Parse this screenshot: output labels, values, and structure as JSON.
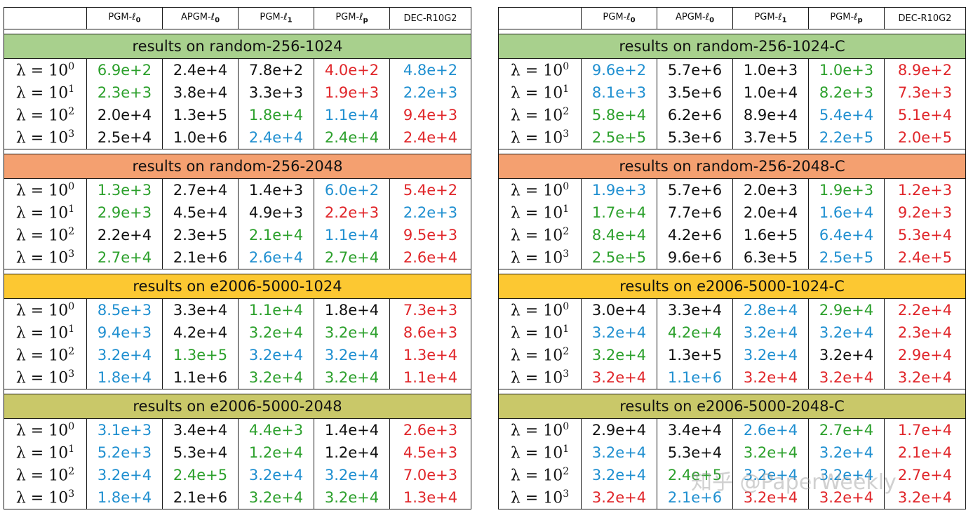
{
  "column_headers": [
    "PGM-ℓ0",
    "APGM-ℓ0",
    "PGM-ℓ1",
    "PGM-ℓp",
    "DEC-R10G2"
  ],
  "column_header_parts": [
    {
      "base": "PGM-ℓ",
      "sub": "0"
    },
    {
      "base": "APGM-ℓ",
      "sub": "0"
    },
    {
      "base": "PGM-ℓ",
      "sub": "1"
    },
    {
      "base": "PGM-ℓ",
      "sub": "p"
    },
    {
      "base": "DEC-R10G2",
      "sub": ""
    }
  ],
  "lambda_labels": [
    {
      "prefix": "λ = 10",
      "exp": "0"
    },
    {
      "prefix": "λ = 10",
      "exp": "1"
    },
    {
      "prefix": "λ = 10",
      "exp": "2"
    },
    {
      "prefix": "λ = 10",
      "exp": "3"
    }
  ],
  "colors": {
    "black": "#111111",
    "green": "#2ca02c",
    "blue": "#1f8fd0",
    "red": "#e0262a"
  },
  "panels": [
    {
      "sections": [
        {
          "title": "results on random-256-1024",
          "bg": "#a8d08d",
          "rows": [
            [
              [
                "6.9e+2",
                "green"
              ],
              [
                "2.4e+4",
                "black"
              ],
              [
                "7.8e+2",
                "black"
              ],
              [
                "4.0e+2",
                "red"
              ],
              [
                "4.8e+2",
                "blue"
              ]
            ],
            [
              [
                "2.3e+3",
                "green"
              ],
              [
                "3.8e+4",
                "black"
              ],
              [
                "3.3e+3",
                "black"
              ],
              [
                "1.9e+3",
                "red"
              ],
              [
                "2.2e+3",
                "blue"
              ]
            ],
            [
              [
                "2.0e+4",
                "black"
              ],
              [
                "1.3e+5",
                "black"
              ],
              [
                "1.8e+4",
                "green"
              ],
              [
                "1.1e+4",
                "blue"
              ],
              [
                "9.4e+3",
                "red"
              ]
            ],
            [
              [
                "2.5e+4",
                "black"
              ],
              [
                "1.0e+6",
                "black"
              ],
              [
                "2.4e+4",
                "blue"
              ],
              [
                "2.4e+4",
                "green"
              ],
              [
                "2.4e+4",
                "red"
              ]
            ]
          ]
        },
        {
          "title": "results on random-256-2048",
          "bg": "#f4a070",
          "rows": [
            [
              [
                "1.3e+3",
                "green"
              ],
              [
                "2.7e+4",
                "black"
              ],
              [
                "1.4e+3",
                "black"
              ],
              [
                "6.0e+2",
                "blue"
              ],
              [
                "5.4e+2",
                "red"
              ]
            ],
            [
              [
                "2.9e+3",
                "green"
              ],
              [
                "4.5e+4",
                "black"
              ],
              [
                "4.9e+3",
                "black"
              ],
              [
                "2.2e+3",
                "red"
              ],
              [
                "2.2e+3",
                "blue"
              ]
            ],
            [
              [
                "2.2e+4",
                "black"
              ],
              [
                "2.3e+5",
                "black"
              ],
              [
                "2.1e+4",
                "green"
              ],
              [
                "1.1e+4",
                "blue"
              ],
              [
                "9.5e+3",
                "red"
              ]
            ],
            [
              [
                "2.7e+4",
                "green"
              ],
              [
                "2.1e+6",
                "black"
              ],
              [
                "2.6e+4",
                "blue"
              ],
              [
                "2.7e+4",
                "green"
              ],
              [
                "2.6e+4",
                "red"
              ]
            ]
          ]
        },
        {
          "title": "results on e2006-5000-1024",
          "bg": "#fcc832",
          "rows": [
            [
              [
                "8.5e+3",
                "blue"
              ],
              [
                "3.3e+4",
                "black"
              ],
              [
                "1.1e+4",
                "green"
              ],
              [
                "1.8e+4",
                "black"
              ],
              [
                "7.3e+3",
                "red"
              ]
            ],
            [
              [
                "9.4e+3",
                "blue"
              ],
              [
                "4.2e+4",
                "black"
              ],
              [
                "3.2e+4",
                "green"
              ],
              [
                "3.2e+4",
                "green"
              ],
              [
                "8.6e+3",
                "red"
              ]
            ],
            [
              [
                "3.2e+4",
                "blue"
              ],
              [
                "1.3e+5",
                "green"
              ],
              [
                "3.2e+4",
                "blue"
              ],
              [
                "3.2e+4",
                "blue"
              ],
              [
                "1.3e+4",
                "red"
              ]
            ],
            [
              [
                "1.8e+4",
                "blue"
              ],
              [
                "1.1e+6",
                "black"
              ],
              [
                "3.2e+4",
                "green"
              ],
              [
                "3.2e+4",
                "green"
              ],
              [
                "1.1e+4",
                "red"
              ]
            ]
          ]
        },
        {
          "title": "results on e2006-5000-2048",
          "bg": "#c9c869",
          "rows": [
            [
              [
                "3.1e+3",
                "blue"
              ],
              [
                "3.4e+4",
                "black"
              ],
              [
                "4.4e+3",
                "green"
              ],
              [
                "1.4e+4",
                "black"
              ],
              [
                "2.6e+3",
                "red"
              ]
            ],
            [
              [
                "5.2e+3",
                "blue"
              ],
              [
                "5.3e+4",
                "black"
              ],
              [
                "1.2e+4",
                "green"
              ],
              [
                "1.2e+4",
                "black"
              ],
              [
                "4.5e+3",
                "red"
              ]
            ],
            [
              [
                "3.2e+4",
                "blue"
              ],
              [
                "2.4e+5",
                "green"
              ],
              [
                "3.2e+4",
                "blue"
              ],
              [
                "3.2e+4",
                "blue"
              ],
              [
                "7.0e+3",
                "red"
              ]
            ],
            [
              [
                "1.8e+4",
                "blue"
              ],
              [
                "2.1e+6",
                "black"
              ],
              [
                "3.2e+4",
                "green"
              ],
              [
                "3.2e+4",
                "green"
              ],
              [
                "1.3e+4",
                "red"
              ]
            ]
          ]
        }
      ]
    },
    {
      "sections": [
        {
          "title": "results on random-256-1024-C",
          "bg": "#a8d08d",
          "rows": [
            [
              [
                "9.6e+2",
                "blue"
              ],
              [
                "5.7e+6",
                "black"
              ],
              [
                "1.0e+3",
                "black"
              ],
              [
                "1.0e+3",
                "green"
              ],
              [
                "8.9e+2",
                "red"
              ]
            ],
            [
              [
                "8.1e+3",
                "blue"
              ],
              [
                "3.5e+6",
                "black"
              ],
              [
                "1.0e+4",
                "black"
              ],
              [
                "8.2e+3",
                "green"
              ],
              [
                "7.3e+3",
                "red"
              ]
            ],
            [
              [
                "5.8e+4",
                "green"
              ],
              [
                "6.2e+6",
                "black"
              ],
              [
                "8.9e+4",
                "black"
              ],
              [
                "5.4e+4",
                "blue"
              ],
              [
                "5.1e+4",
                "red"
              ]
            ],
            [
              [
                "2.5e+5",
                "green"
              ],
              [
                "5.3e+6",
                "black"
              ],
              [
                "3.7e+5",
                "black"
              ],
              [
                "2.2e+5",
                "blue"
              ],
              [
                "2.0e+5",
                "red"
              ]
            ]
          ]
        },
        {
          "title": "results on random-256-2048-C",
          "bg": "#f4a070",
          "rows": [
            [
              [
                "1.9e+3",
                "blue"
              ],
              [
                "5.7e+6",
                "black"
              ],
              [
                "2.0e+3",
                "black"
              ],
              [
                "1.9e+3",
                "green"
              ],
              [
                "1.2e+3",
                "red"
              ]
            ],
            [
              [
                "1.7e+4",
                "green"
              ],
              [
                "7.7e+6",
                "black"
              ],
              [
                "2.0e+4",
                "black"
              ],
              [
                "1.6e+4",
                "blue"
              ],
              [
                "9.2e+3",
                "red"
              ]
            ],
            [
              [
                "8.4e+4",
                "green"
              ],
              [
                "4.2e+6",
                "black"
              ],
              [
                "1.6e+5",
                "black"
              ],
              [
                "6.4e+4",
                "blue"
              ],
              [
                "5.3e+4",
                "red"
              ]
            ],
            [
              [
                "2.5e+5",
                "green"
              ],
              [
                "9.6e+6",
                "black"
              ],
              [
                "6.3e+5",
                "black"
              ],
              [
                "2.5e+5",
                "blue"
              ],
              [
                "2.4e+5",
                "red"
              ]
            ]
          ]
        },
        {
          "title": "results on e2006-5000-1024-C",
          "bg": "#fcc832",
          "rows": [
            [
              [
                "3.0e+4",
                "black"
              ],
              [
                "3.3e+4",
                "black"
              ],
              [
                "2.8e+4",
                "blue"
              ],
              [
                "2.9e+4",
                "green"
              ],
              [
                "2.2e+4",
                "red"
              ]
            ],
            [
              [
                "3.2e+4",
                "blue"
              ],
              [
                "4.2e+4",
                "green"
              ],
              [
                "3.2e+4",
                "blue"
              ],
              [
                "3.2e+4",
                "blue"
              ],
              [
                "2.3e+4",
                "red"
              ]
            ],
            [
              [
                "3.2e+4",
                "green"
              ],
              [
                "1.3e+5",
                "black"
              ],
              [
                "3.2e+4",
                "blue"
              ],
              [
                "3.2e+4",
                "black"
              ],
              [
                "2.9e+4",
                "red"
              ]
            ],
            [
              [
                "3.2e+4",
                "red"
              ],
              [
                "1.1e+6",
                "blue"
              ],
              [
                "3.2e+4",
                "red"
              ],
              [
                "3.2e+4",
                "red"
              ],
              [
                "3.2e+4",
                "red"
              ]
            ]
          ]
        },
        {
          "title": "results on e2006-5000-2048-C",
          "bg": "#c9c869",
          "rows": [
            [
              [
                "2.9e+4",
                "black"
              ],
              [
                "3.4e+4",
                "black"
              ],
              [
                "2.6e+4",
                "blue"
              ],
              [
                "2.7e+4",
                "green"
              ],
              [
                "1.7e+4",
                "red"
              ]
            ],
            [
              [
                "3.2e+4",
                "blue"
              ],
              [
                "5.3e+4",
                "black"
              ],
              [
                "3.2e+4",
                "green"
              ],
              [
                "3.2e+4",
                "blue"
              ],
              [
                "2.1e+4",
                "red"
              ]
            ],
            [
              [
                "3.2e+4",
                "blue"
              ],
              [
                "2.4e+5",
                "green"
              ],
              [
                "3.2e+4",
                "blue"
              ],
              [
                "3.2e+4",
                "blue"
              ],
              [
                "2.7e+4",
                "red"
              ]
            ],
            [
              [
                "3.2e+4",
                "red"
              ],
              [
                "2.1e+6",
                "blue"
              ],
              [
                "3.2e+4",
                "red"
              ],
              [
                "3.2e+4",
                "red"
              ],
              [
                "3.2e+4",
                "red"
              ]
            ]
          ]
        }
      ]
    }
  ],
  "watermark": "知乎 @PaperWeekly"
}
